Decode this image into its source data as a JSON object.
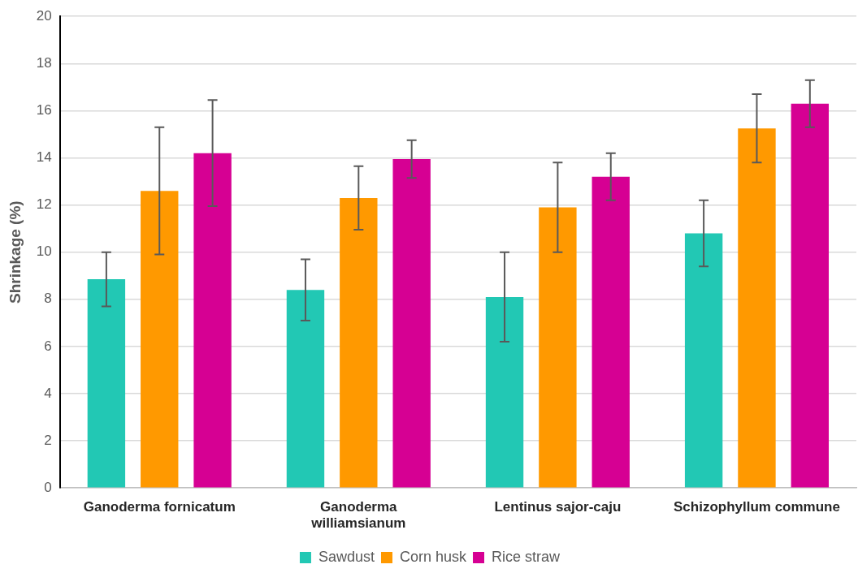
{
  "chart_data": {
    "type": "bar",
    "ylabel": "Shrinkage (%)",
    "categories": [
      "Ganoderma fornicatum",
      "Ganoderma williamsianum",
      "Lentinus sajor-caju",
      "Schizophyllum commune"
    ],
    "series": [
      {
        "name": "Sawdust",
        "color": "#22c8b4",
        "values": [
          8.85,
          8.4,
          8.1,
          10.8
        ],
        "errors": [
          1.15,
          1.3,
          1.9,
          1.4
        ]
      },
      {
        "name": "Corn husk",
        "color": "#ff9900",
        "values": [
          12.6,
          12.3,
          11.9,
          15.25
        ],
        "errors": [
          2.7,
          1.35,
          1.9,
          1.45
        ]
      },
      {
        "name": "Rice straw",
        "color": "#d60093",
        "values": [
          14.2,
          13.95,
          13.2,
          16.3
        ],
        "errors": [
          2.25,
          0.8,
          1.0,
          1.0
        ]
      }
    ],
    "ylim": [
      0,
      20
    ],
    "yticks": [
      0,
      2,
      4,
      6,
      8,
      10,
      12,
      14,
      16,
      18,
      20
    ],
    "grid": "y",
    "legend": "bottom"
  }
}
